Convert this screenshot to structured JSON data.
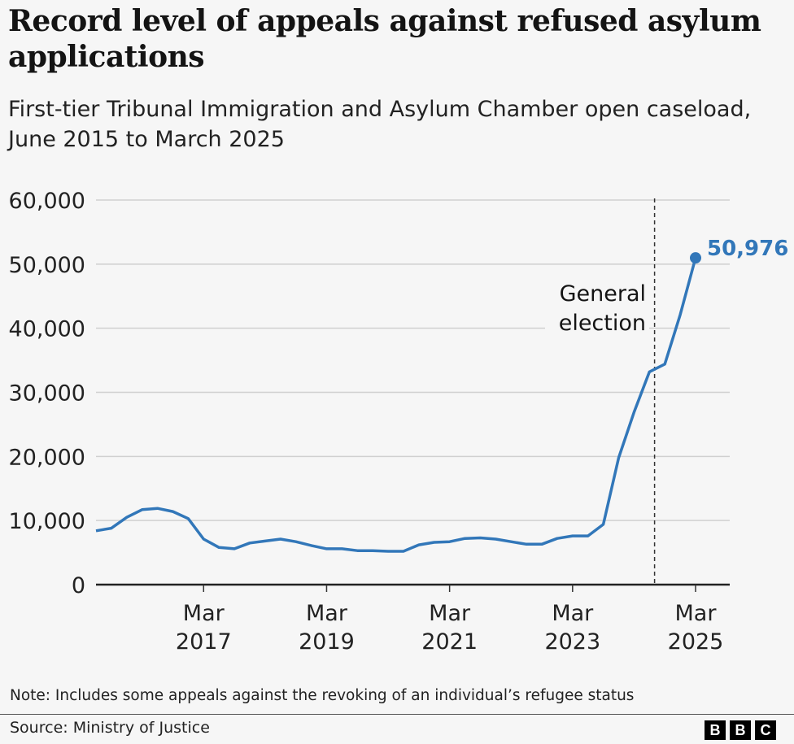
{
  "header": {
    "title": "Record level of appeals against refused asylum applications",
    "subtitle": "First-tier Tribunal Immigration and Asylum Chamber open caseload, June 2015 to March 2025"
  },
  "chart_data": {
    "type": "line",
    "title": "Record level of appeals against refused asylum applications",
    "subtitle": "First-tier Tribunal Immigration and Asylum Chamber open caseload, June 2015 to March 2025",
    "ylim": [
      0,
      60000
    ],
    "yticks": [
      0,
      10000,
      20000,
      30000,
      40000,
      50000,
      60000
    ],
    "ytick_labels": [
      "0",
      "10,000",
      "20,000",
      "30,000",
      "40,000",
      "50,000",
      "60,000"
    ],
    "xticks": [
      {
        "date": "2017-03",
        "label1": "Mar",
        "label2": "2017"
      },
      {
        "date": "2019-03",
        "label1": "Mar",
        "label2": "2019"
      },
      {
        "date": "2021-03",
        "label1": "Mar",
        "label2": "2021"
      },
      {
        "date": "2023-03",
        "label1": "Mar",
        "label2": "2023"
      },
      {
        "date": "2025-03",
        "label1": "Mar",
        "label2": "2025"
      }
    ],
    "grid": true,
    "line_color": "#3277b9",
    "x": [
      "2015-06",
      "2015-09",
      "2015-12",
      "2016-03",
      "2016-06",
      "2016-09",
      "2016-12",
      "2017-03",
      "2017-06",
      "2017-09",
      "2017-12",
      "2018-03",
      "2018-06",
      "2018-09",
      "2018-12",
      "2019-03",
      "2019-06",
      "2019-09",
      "2019-12",
      "2020-03",
      "2020-06",
      "2020-09",
      "2020-12",
      "2021-03",
      "2021-06",
      "2021-09",
      "2021-12",
      "2022-03",
      "2022-06",
      "2022-09",
      "2022-12",
      "2023-03",
      "2023-06",
      "2023-09",
      "2023-12",
      "2024-03",
      "2024-06",
      "2024-09",
      "2024-12",
      "2025-03"
    ],
    "values": [
      8400,
      8800,
      10500,
      11700,
      11900,
      11400,
      10300,
      7100,
      5800,
      5600,
      6500,
      6800,
      7100,
      6700,
      6100,
      5600,
      5600,
      5300,
      5300,
      5200,
      5200,
      6200,
      6600,
      6700,
      7200,
      7300,
      7100,
      6700,
      6300,
      6300,
      7200,
      7600,
      7600,
      9400,
      19800,
      26900,
      33200,
      34400,
      42100,
      50976
    ],
    "end_label": "50,976",
    "annotation": {
      "date": "2024-07",
      "line1": "General",
      "line2": "election"
    }
  },
  "footer": {
    "note": "Note: Includes some appeals against the revoking of an individual’s refugee status",
    "source": "Source: Ministry of Justice",
    "logo": "BBC"
  }
}
